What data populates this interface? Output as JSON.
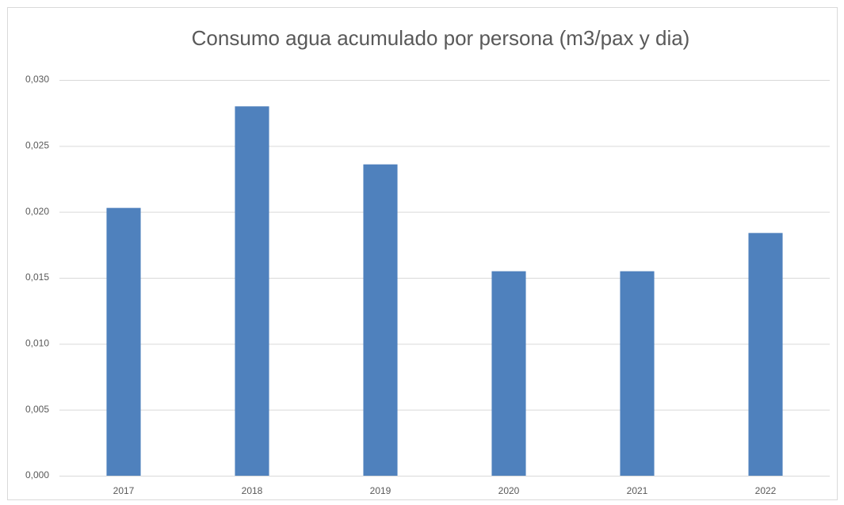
{
  "chart_data": {
    "type": "bar",
    "title": "Consumo agua acumulado por persona (m3/pax y dia)",
    "categories": [
      "2017",
      "2018",
      "2019",
      "2020",
      "2021",
      "2022"
    ],
    "values": [
      0.0203,
      0.028,
      0.0236,
      0.0155,
      0.0155,
      0.0184
    ],
    "color": "#4f81bd",
    "ylim": [
      0,
      0.03
    ],
    "yticks": [
      {
        "value": 0,
        "label": "0,000"
      },
      {
        "value": 0.005,
        "label": "0,005"
      },
      {
        "value": 0.01,
        "label": "0,010"
      },
      {
        "value": 0.015,
        "label": "0,015"
      },
      {
        "value": 0.02,
        "label": "0,020"
      },
      {
        "value": 0.025,
        "label": "0,025"
      },
      {
        "value": 0.03,
        "label": "0,030"
      }
    ],
    "grid": true
  }
}
